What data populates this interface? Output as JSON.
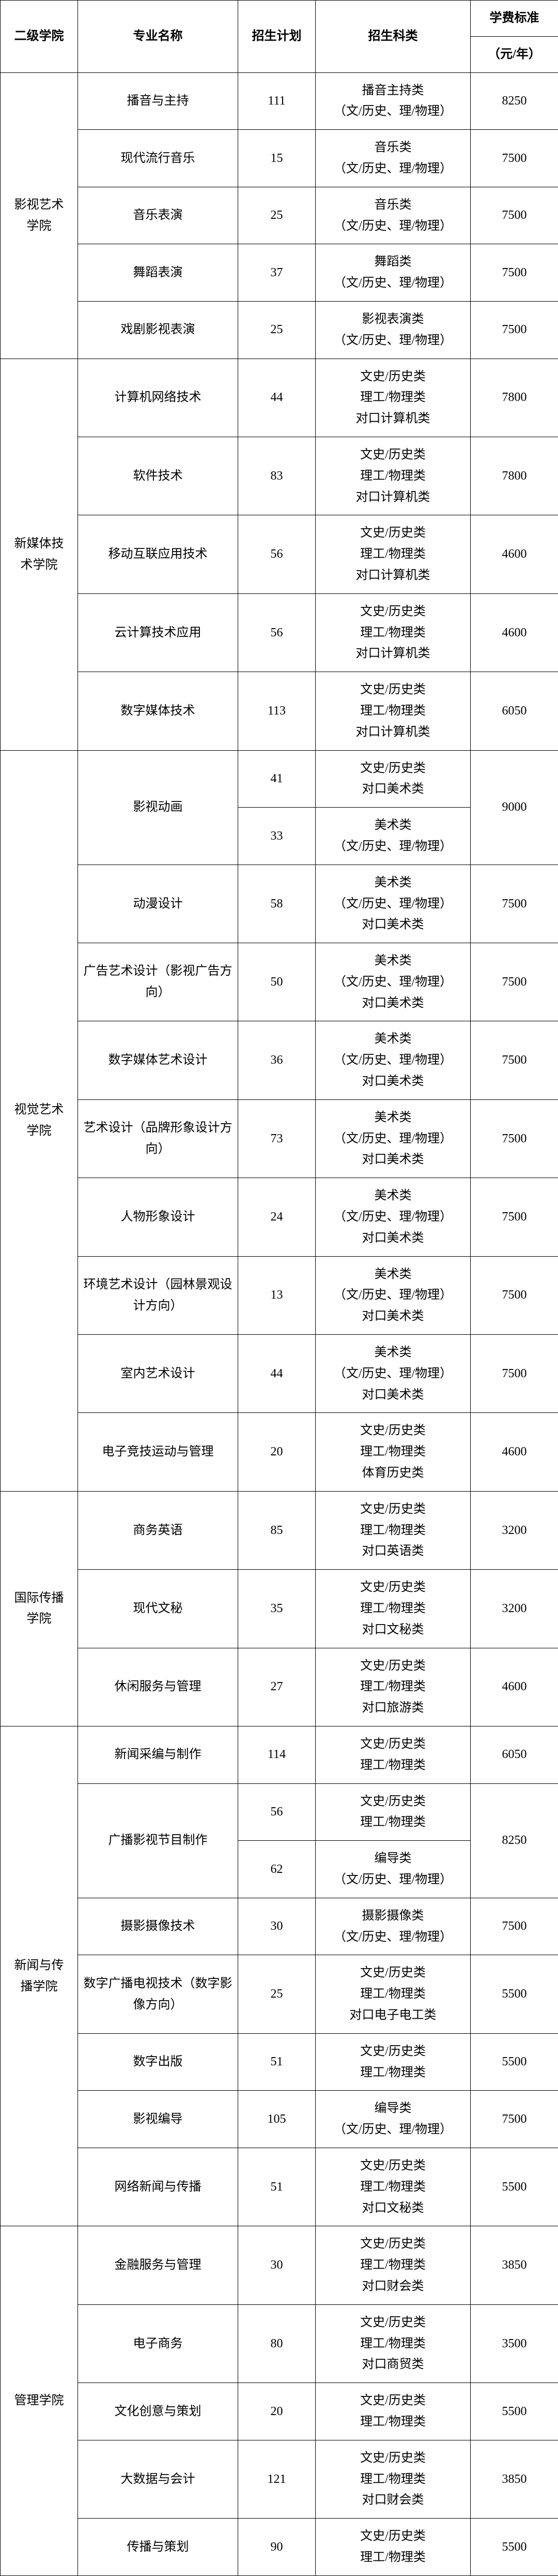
{
  "headers": {
    "college": "二级学院",
    "major": "专业名称",
    "plan": "招生计划",
    "category": "招生科类",
    "tuition_group": "学费标准",
    "tuition_unit": "（元/年）"
  },
  "colleges": [
    {
      "name": "影视艺术<br>学院",
      "majors": [
        {
          "name": "播音与主持",
          "plan": "111",
          "cat": "播音主持类<br>（文/历史、理/物理）",
          "fee": "8250"
        },
        {
          "name": "现代流行音乐",
          "plan": "15",
          "cat": "音乐类<br>（文/历史、理/物理）",
          "fee": "7500"
        },
        {
          "name": "音乐表演",
          "plan": "25",
          "cat": "音乐类<br>（文/历史、理/物理）",
          "fee": "7500"
        },
        {
          "name": "舞蹈表演",
          "plan": "37",
          "cat": "舞蹈类<br>（文/历史、理/物理）",
          "fee": "7500"
        },
        {
          "name": "戏剧影视表演",
          "plan": "25",
          "cat": "影视表演类<br>（文/历史、理/物理）",
          "fee": "7500"
        }
      ]
    },
    {
      "name": "新媒体技<br>术学院",
      "majors": [
        {
          "name": "计算机网络技术",
          "plan": "44",
          "cat": "文史/历史类<br>理工/物理类<br>对口计算机类",
          "fee": "7800"
        },
        {
          "name": "软件技术",
          "plan": "83",
          "cat": "文史/历史类<br>理工/物理类<br>对口计算机类",
          "fee": "7800"
        },
        {
          "name": "移动互联应用技术",
          "plan": "56",
          "cat": "文史/历史类<br>理工/物理类<br>对口计算机类",
          "fee": "4600"
        },
        {
          "name": "云计算技术应用",
          "plan": "56",
          "cat": "文史/历史类<br>理工/物理类<br>对口计算机类",
          "fee": "4600"
        },
        {
          "name": "数字媒体技术",
          "plan": "113",
          "cat": "文史/历史类<br>理工/物理类<br>对口计算机类",
          "fee": "6050"
        }
      ]
    },
    {
      "name": "视觉艺术<br>学院",
      "special_first": {
        "name": "影视动画",
        "row1_plan": "41",
        "row1_cat": "文史/历史类<br>对口美术类",
        "row2_plan": "33",
        "row2_cat": "美术类<br>（文/历史、理/物理）",
        "fee": "9000"
      },
      "majors": [
        {
          "name": "动漫设计",
          "plan": "58",
          "cat": "美术类<br>（文/历史、理/物理）<br>对口美术类",
          "fee": "7500"
        },
        {
          "name": "广告艺术设计（影视广告方向）",
          "plan": "50",
          "cat": "美术类<br>（文/历史、理/物理）<br>对口美术类",
          "fee": "7500"
        },
        {
          "name": "数字媒体艺术设计",
          "plan": "36",
          "cat": "美术类<br>（文/历史、理/物理）<br>对口美术类",
          "fee": "7500"
        },
        {
          "name": "艺术设计（品牌形象设计方向）",
          "plan": "73",
          "cat": "美术类<br>（文/历史、理/物理）<br>对口美术类",
          "fee": "7500"
        },
        {
          "name": "人物形象设计",
          "plan": "24",
          "cat": "美术类<br>（文/历史、理/物理）<br>对口美术类",
          "fee": "7500"
        },
        {
          "name": "环境艺术设计（园林景观设计方向）",
          "plan": "13",
          "cat": "美术类<br>（文/历史、理/物理）<br>对口美术类",
          "fee": "7500"
        },
        {
          "name": "室内艺术设计",
          "plan": "44",
          "cat": "美术类<br>（文/历史、理/物理）<br>对口美术类",
          "fee": "7500"
        },
        {
          "name": "电子竞技运动与管理",
          "plan": "20",
          "cat": "文史/历史类<br>理工/物理类<br>体育历史类",
          "fee": "4600"
        }
      ]
    },
    {
      "name": "国际传播<br>学院",
      "majors": [
        {
          "name": "商务英语",
          "plan": "85",
          "cat": "文史/历史类<br>理工/物理类<br>对口英语类",
          "fee": "3200"
        },
        {
          "name": "现代文秘",
          "plan": "35",
          "cat": "文史/历史类<br>理工/物理类<br>对口文秘类",
          "fee": "3200"
        },
        {
          "name": "休闲服务与管理",
          "plan": "27",
          "cat": "文史/历史类<br>理工/物理类<br>对口旅游类",
          "fee": "4600"
        }
      ]
    },
    {
      "name": "新闻与传<br>播学院",
      "majors_pre": [
        {
          "name": "新闻采编与制作",
          "plan": "114",
          "cat": "文史/历史类<br>理工/物理类",
          "fee": "6050"
        }
      ],
      "special_second": {
        "name": "广播影视节目制作",
        "row1_plan": "56",
        "row1_cat": "文史/历史类<br>理工/物理类",
        "row2_plan": "62",
        "row2_cat": "编导类<br>（文/历史、理/物理）",
        "fee": "8250"
      },
      "majors_post": [
        {
          "name": "摄影摄像技术",
          "plan": "30",
          "cat": "摄影摄像类<br>（文/历史、理/物理）",
          "fee": "7500"
        },
        {
          "name": "数字广播电视技术（数字影像方向）",
          "plan": "25",
          "cat": "文史/历史类<br>理工/物理类<br>对口电子电工类",
          "fee": "5500"
        },
        {
          "name": "数字出版",
          "plan": "51",
          "cat": "文史/历史类<br>理工/物理类",
          "fee": "5500"
        },
        {
          "name": "影视编导",
          "plan": "105",
          "cat": "编导类<br>（文/历史、理/物理）",
          "fee": "7500"
        },
        {
          "name": "网络新闻与传播",
          "plan": "51",
          "cat": "文史/历史类<br>理工/物理类<br>对口文秘类",
          "fee": "5500"
        }
      ]
    },
    {
      "name": "管理学院",
      "majors": [
        {
          "name": "金融服务与管理",
          "plan": "30",
          "cat": "文史/历史类<br>理工/物理类<br>对口财会类",
          "fee": "3850"
        },
        {
          "name": "电子商务",
          "plan": "80",
          "cat": "文史/历史类<br>理工/物理类<br>对口商贸类",
          "fee": "3500"
        },
        {
          "name": "文化创意与策划",
          "plan": "20",
          "cat": "文史/历史类<br>理工/物理类",
          "fee": "5500"
        },
        {
          "name": "大数据与会计",
          "plan": "121",
          "cat": "文史/历史类<br>理工/物理类<br>对口财会类",
          "fee": "3850"
        },
        {
          "name": "传播与策划",
          "plan": "90",
          "cat": "文史/历史类<br>理工/物理类",
          "fee": "5500"
        }
      ]
    }
  ]
}
